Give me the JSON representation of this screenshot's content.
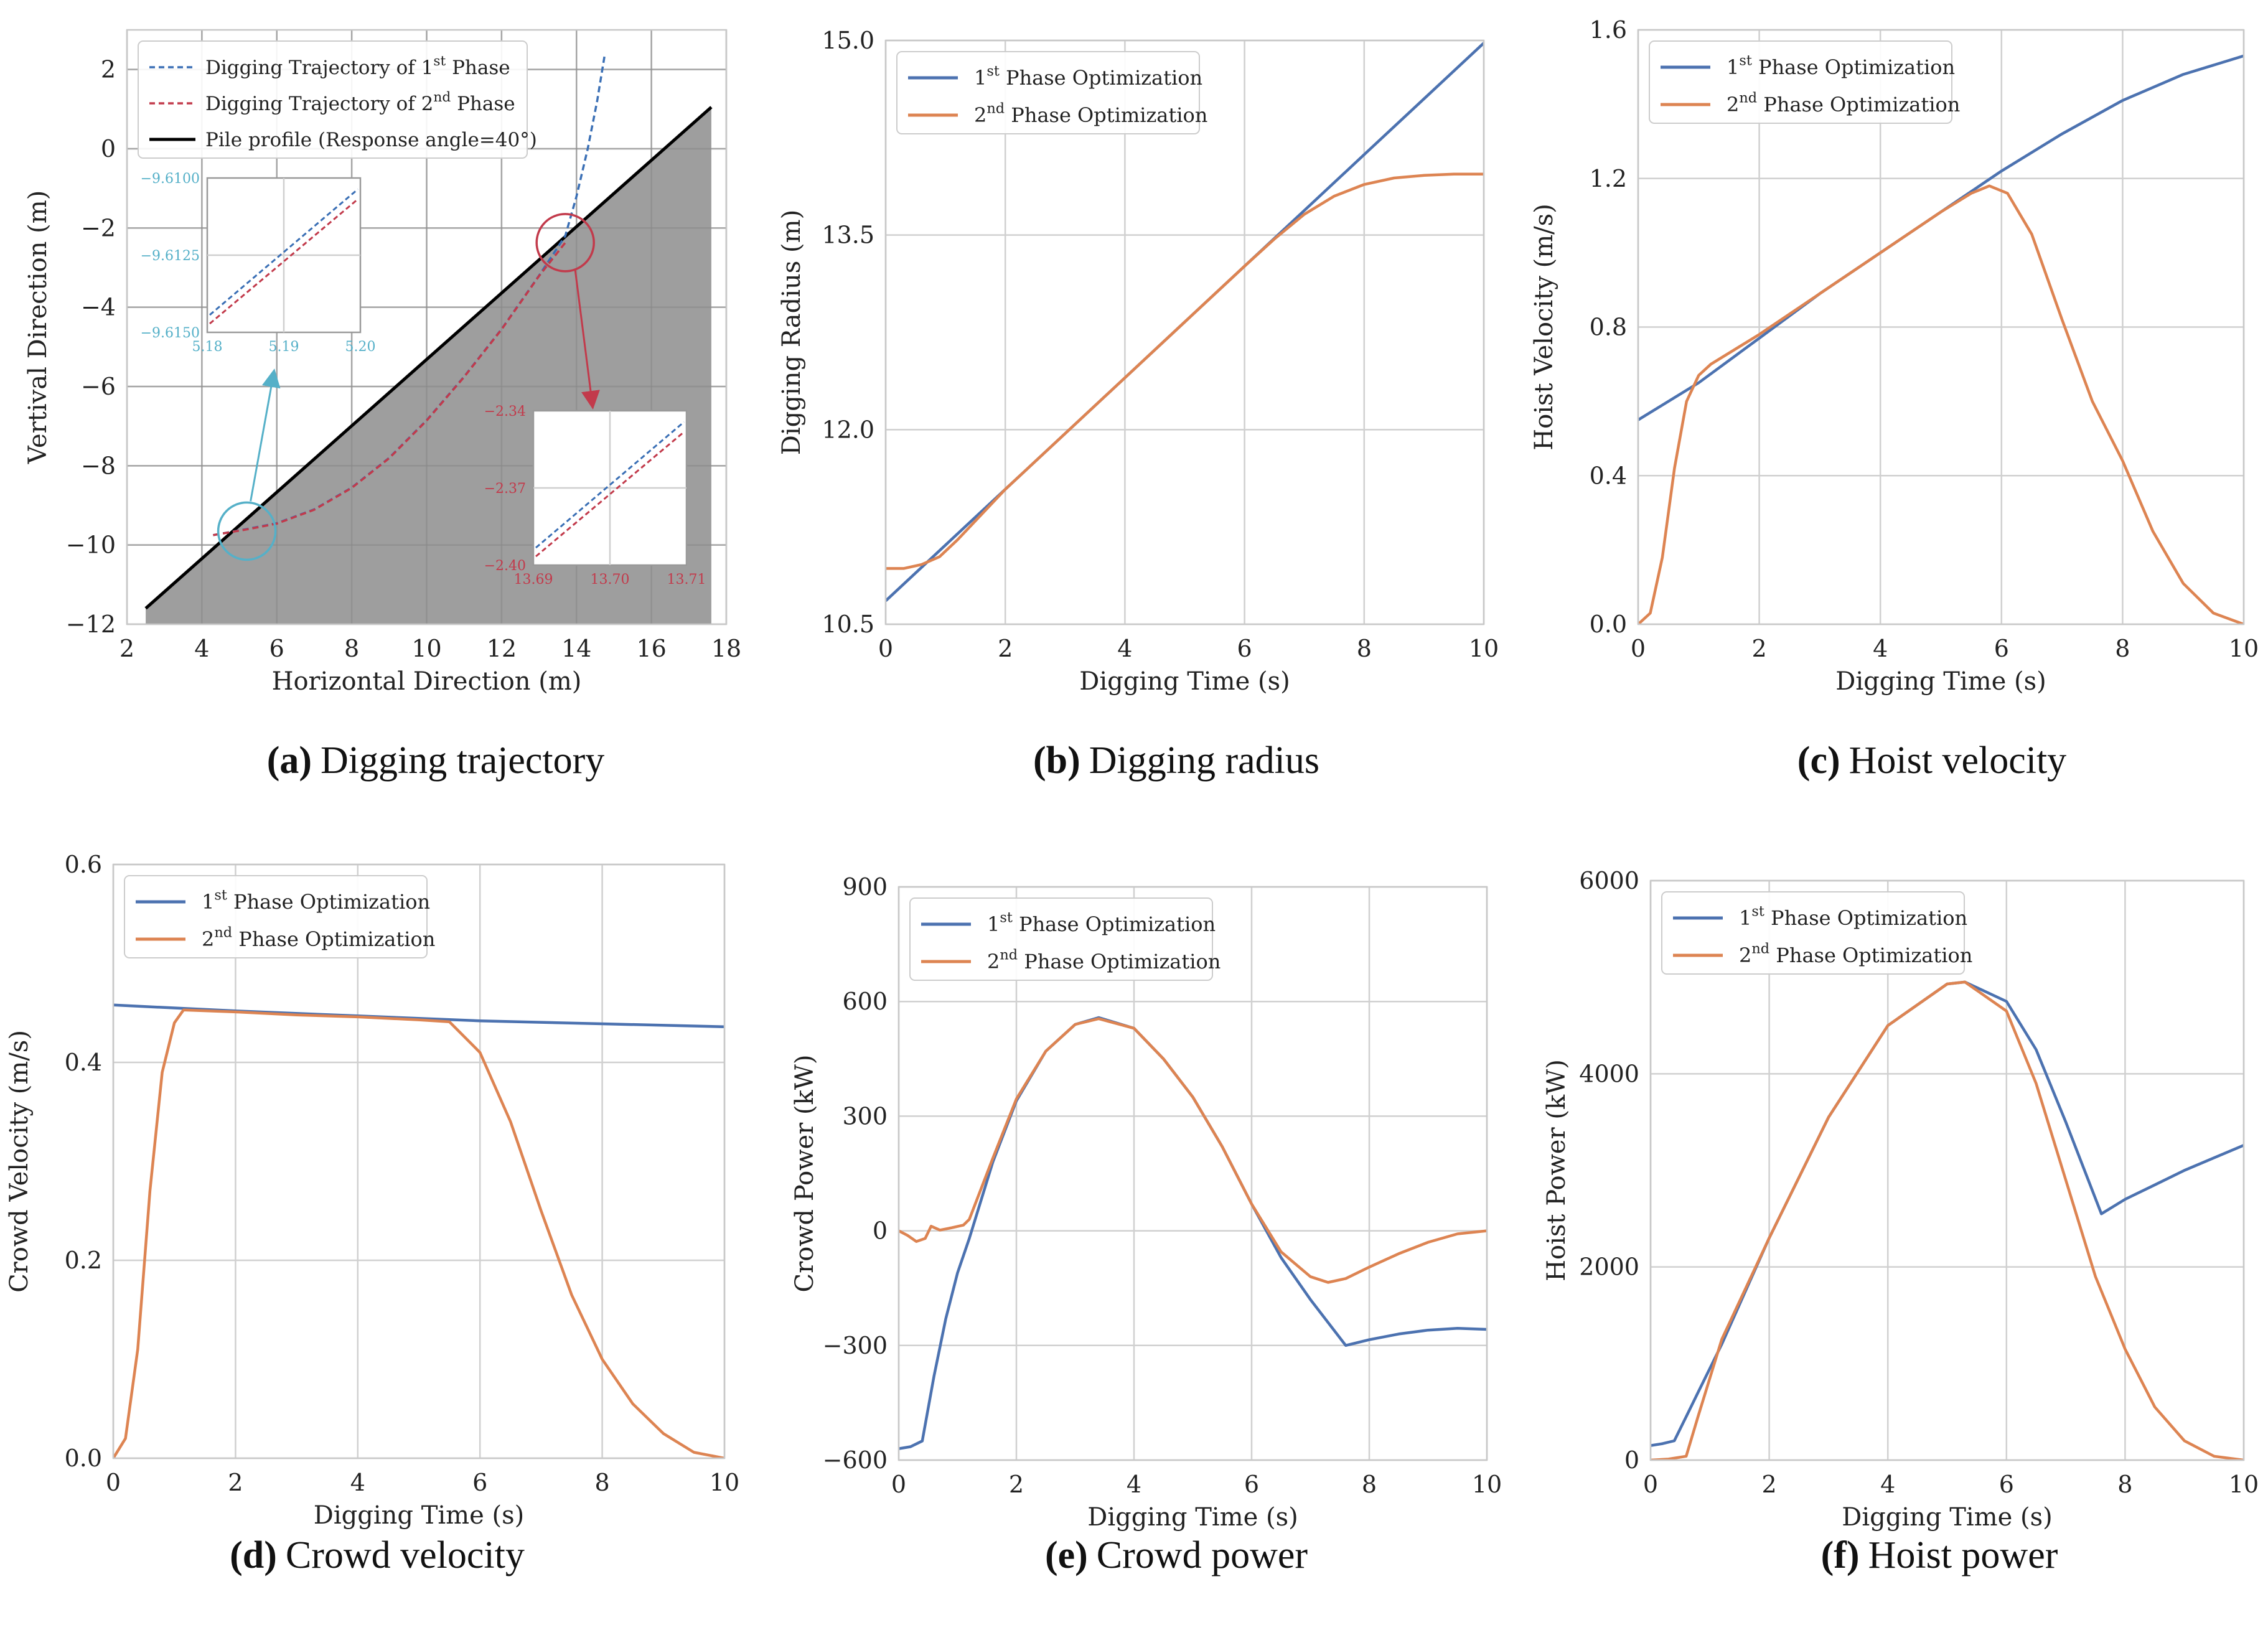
{
  "colors": {
    "blue": "#4c72b0",
    "orange": "#dd8452",
    "traj_blue": "#3a6fb5",
    "traj_red": "#c23a4b",
    "cyan": "#55b0c8",
    "pile_fill": "#999999",
    "grid": "#d0d0d0"
  },
  "chart_data": [
    {
      "id": "a",
      "type": "line",
      "caption_letter": "(a)",
      "caption_text": "Digging trajectory",
      "xlabel": "Horizontal Direction (m)",
      "ylabel": "Vertival Direction (m)",
      "xlim": [
        2,
        18
      ],
      "ylim": [
        -12,
        3
      ],
      "xticks": [
        2,
        4,
        6,
        8,
        10,
        12,
        14,
        16,
        18
      ],
      "yticks": [
        -12,
        -10,
        -8,
        -6,
        -4,
        -2,
        0,
        2
      ],
      "legend": [
        {
          "label": "Digging Trajectory of 1st  Phase",
          "style": "dashed",
          "color": "traj_blue"
        },
        {
          "label": "Digging Trajectory of 2nd Phase",
          "style": "dashed",
          "color": "traj_red"
        },
        {
          "label": "Pile profile (Response angle=40°)",
          "style": "solid",
          "color": "black"
        }
      ],
      "pile_profile": {
        "x": [
          2.5,
          17.6
        ],
        "y": [
          -11.6,
          1.05
        ]
      },
      "series": [
        {
          "name": "Digging Trajectory of 1st Phase",
          "color": "traj_blue",
          "x": [
            4.3,
            5.18,
            6,
            7,
            8,
            9,
            10,
            11,
            12,
            13,
            13.7,
            14.0,
            14.3,
            14.55,
            14.75
          ],
          "y": [
            -9.75,
            -9.6,
            -9.45,
            -9.1,
            -8.55,
            -7.8,
            -6.85,
            -5.75,
            -4.55,
            -3.2,
            -2.2,
            -1.2,
            0.0,
            1.2,
            2.35
          ]
        },
        {
          "name": "Digging Trajectory of 2nd Phase",
          "color": "traj_red",
          "x": [
            4.3,
            5.18,
            6,
            7,
            8,
            9,
            10,
            11,
            12,
            13,
            13.7
          ],
          "y": [
            -9.75,
            -9.61,
            -9.46,
            -9.11,
            -8.56,
            -7.81,
            -6.86,
            -5.76,
            -4.56,
            -3.21,
            -2.37
          ]
        }
      ],
      "annotations": {
        "circle_cyan": {
          "x": 5.2,
          "y": -9.65
        },
        "circle_red": {
          "x": 13.7,
          "y": -2.37
        },
        "inset_left": {
          "xticks": [
            "5.18",
            "5.19",
            "5.20"
          ],
          "yticks": [
            "−9.6100",
            "−9.6125",
            "−9.6150"
          ]
        },
        "inset_right": {
          "xticks": [
            "13.69",
            "13.70",
            "13.71"
          ],
          "yticks": [
            "−2.34",
            "−2.37",
            "−2.40"
          ]
        }
      }
    },
    {
      "id": "b",
      "type": "line",
      "caption_letter": "(b)",
      "caption_text": "Digging radius",
      "xlabel": "Digging Time (s)",
      "ylabel": "Digging Radius (m)",
      "xlim": [
        0,
        10
      ],
      "ylim": [
        10.5,
        15.0
      ],
      "xticks": [
        0,
        2,
        4,
        6,
        8,
        10
      ],
      "yticks": [
        10.5,
        12.0,
        13.5,
        15.0
      ],
      "ytick_labels": [
        "10.5",
        "12.0",
        "13.5",
        "15.0"
      ],
      "legend": [
        "1st  Phase Optimization",
        "2nd Phase Optimization"
      ],
      "series": [
        {
          "name": "1st Phase Optimization",
          "color": "blue",
          "x": [
            0,
            1,
            2,
            3,
            4,
            5,
            6,
            7,
            8,
            9,
            10
          ],
          "y": [
            10.68,
            11.11,
            11.54,
            11.97,
            12.4,
            12.83,
            13.26,
            13.69,
            14.12,
            14.55,
            14.98
          ]
        },
        {
          "name": "2nd Phase Optimization",
          "color": "orange",
          "x": [
            0,
            0.3,
            0.6,
            0.9,
            1.2,
            2,
            3,
            4,
            5,
            6,
            6.5,
            7,
            7.5,
            8,
            8.5,
            9,
            9.5,
            10
          ],
          "y": [
            10.93,
            10.93,
            10.96,
            11.02,
            11.15,
            11.54,
            11.97,
            12.4,
            12.83,
            13.26,
            13.47,
            13.66,
            13.8,
            13.89,
            13.94,
            13.96,
            13.97,
            13.97
          ]
        }
      ]
    },
    {
      "id": "c",
      "type": "line",
      "caption_letter": "(c)",
      "caption_text": "Hoist velocity",
      "xlabel": "Digging Time (s)",
      "ylabel": "Hoist Velocity (m/s)",
      "xlim": [
        0,
        10
      ],
      "ylim": [
        0,
        1.6
      ],
      "xticks": [
        0,
        2,
        4,
        6,
        8,
        10
      ],
      "yticks": [
        0,
        0.4,
        0.8,
        1.2,
        1.6
      ],
      "ytick_labels": [
        "0.0",
        "0.4",
        "0.8",
        "1.2",
        "1.6"
      ],
      "legend": [
        "1st  Phase Optimization",
        "2nd Phase Optimization"
      ],
      "series": [
        {
          "name": "1st Phase Optimization",
          "color": "blue",
          "x": [
            0,
            1,
            2,
            3,
            4,
            5,
            6,
            7,
            8,
            9,
            10
          ],
          "y": [
            0.55,
            0.65,
            0.77,
            0.89,
            1.0,
            1.11,
            1.22,
            1.32,
            1.41,
            1.48,
            1.53
          ]
        },
        {
          "name": "2nd Phase Optimization",
          "color": "orange",
          "x": [
            0,
            0.2,
            0.4,
            0.6,
            0.8,
            1.0,
            1.2,
            2,
            3,
            4,
            5,
            5.5,
            5.8,
            6.1,
            6.5,
            7,
            7.5,
            8,
            8.5,
            9,
            9.5,
            10
          ],
          "y": [
            0,
            0.03,
            0.18,
            0.42,
            0.6,
            0.67,
            0.7,
            0.78,
            0.89,
            1.0,
            1.11,
            1.16,
            1.18,
            1.16,
            1.05,
            0.82,
            0.6,
            0.44,
            0.25,
            0.11,
            0.03,
            0
          ]
        }
      ]
    },
    {
      "id": "d",
      "type": "line",
      "caption_letter": "(d)",
      "caption_text": "Crowd velocity",
      "xlabel": "Digging Time (s)",
      "ylabel": "Crowd Velocity (m/s)",
      "xlim": [
        0,
        10
      ],
      "ylim": [
        0,
        0.6
      ],
      "xticks": [
        0,
        2,
        4,
        6,
        8,
        10
      ],
      "yticks": [
        0,
        0.2,
        0.4,
        0.6
      ],
      "ytick_labels": [
        "0.0",
        "0.2",
        "0.4",
        "0.6"
      ],
      "legend": [
        "1st  Phase Optimization",
        "2nd Phase Optimization"
      ],
      "series": [
        {
          "name": "1st Phase Optimization",
          "color": "blue",
          "x": [
            0,
            2,
            4,
            6,
            8,
            10
          ],
          "y": [
            0.458,
            0.452,
            0.447,
            0.442,
            0.439,
            0.436
          ]
        },
        {
          "name": "2nd Phase Optimization",
          "color": "orange",
          "x": [
            0,
            0.2,
            0.4,
            0.6,
            0.8,
            1.0,
            1.15,
            2,
            3,
            4,
            5,
            5.5,
            6,
            6.5,
            7,
            7.5,
            8,
            8.5,
            9,
            9.5,
            10
          ],
          "y": [
            0,
            0.02,
            0.11,
            0.27,
            0.39,
            0.44,
            0.453,
            0.451,
            0.448,
            0.446,
            0.443,
            0.441,
            0.41,
            0.34,
            0.25,
            0.165,
            0.1,
            0.055,
            0.025,
            0.006,
            0
          ]
        }
      ]
    },
    {
      "id": "e",
      "type": "line",
      "caption_letter": "(e)",
      "caption_text": "Crowd power",
      "xlabel": "Digging Time (s)",
      "ylabel": "Crowd Power (kW)",
      "xlim": [
        0,
        10
      ],
      "ylim": [
        -600,
        900
      ],
      "xticks": [
        0,
        2,
        4,
        6,
        8,
        10
      ],
      "yticks": [
        -600,
        -300,
        0,
        300,
        600,
        900
      ],
      "ytick_labels": [
        "−600",
        "−300",
        "0",
        "300",
        "600",
        "900"
      ],
      "legend": [
        "1st  Phase Optimization",
        "2nd Phase Optimization"
      ],
      "series": [
        {
          "name": "1st Phase Optimization",
          "color": "blue",
          "x": [
            0,
            0.2,
            0.4,
            0.6,
            0.8,
            1.0,
            1.2,
            1.6,
            2,
            2.5,
            3,
            3.4,
            4,
            4.5,
            5,
            5.5,
            6,
            6.5,
            7,
            7.6,
            8,
            8.5,
            9,
            9.5,
            10
          ],
          "y": [
            -570,
            -565,
            -550,
            -380,
            -230,
            -110,
            -20,
            180,
            340,
            470,
            540,
            558,
            530,
            450,
            350,
            220,
            70,
            -70,
            -180,
            -300,
            -285,
            -270,
            -260,
            -255,
            -258
          ]
        },
        {
          "name": "2nd Phase Optimization",
          "color": "orange",
          "x": [
            0,
            0.15,
            0.3,
            0.45,
            0.55,
            0.7,
            0.9,
            1.1,
            1.2,
            1.6,
            2,
            2.5,
            3,
            3.4,
            4,
            4.5,
            5,
            5.5,
            6,
            6.5,
            7,
            7.3,
            7.6,
            8,
            8.5,
            9,
            9.5,
            10
          ],
          "y": [
            0,
            -12,
            -28,
            -20,
            12,
            2,
            8,
            15,
            30,
            190,
            345,
            470,
            540,
            555,
            530,
            450,
            350,
            220,
            70,
            -55,
            -120,
            -135,
            -125,
            -95,
            -60,
            -30,
            -8,
            0
          ]
        }
      ]
    },
    {
      "id": "f",
      "type": "line",
      "caption_letter": "(f)",
      "caption_text": "Hoist power",
      "xlabel": "Digging Time (s)",
      "ylabel": "Hoist Power (kW)",
      "xlim": [
        0,
        10
      ],
      "ylim": [
        0,
        6000
      ],
      "xticks": [
        0,
        2,
        4,
        6,
        8,
        10
      ],
      "yticks": [
        0,
        2000,
        4000,
        6000
      ],
      "ytick_labels": [
        "0",
        "2000",
        "4000",
        "6000"
      ],
      "legend": [
        "1st  Phase Optimization",
        "2nd Phase Optimization"
      ],
      "series": [
        {
          "name": "1st Phase Optimization",
          "color": "blue",
          "x": [
            0,
            0.2,
            0.4,
            0.6,
            0.8,
            1.0,
            1.2,
            2,
            3,
            4,
            5,
            5.3,
            6,
            6.5,
            7,
            7.6,
            8,
            8.5,
            9,
            9.5,
            10
          ],
          "y": [
            150,
            170,
            200,
            450,
            700,
            950,
            1200,
            2300,
            3550,
            4500,
            4930,
            4950,
            4750,
            4250,
            3500,
            2550,
            2700,
            2850,
            3000,
            3130,
            3260
          ]
        },
        {
          "name": "2nd Phase Optimization",
          "color": "orange",
          "x": [
            0,
            0.3,
            0.6,
            0.8,
            1.0,
            1.2,
            2,
            3,
            4,
            5,
            5.3,
            6,
            6.5,
            7,
            7.5,
            8,
            8.5,
            9,
            9.5,
            10
          ],
          "y": [
            0,
            10,
            40,
            450,
            850,
            1250,
            2300,
            3550,
            4500,
            4930,
            4950,
            4650,
            3900,
            2900,
            1900,
            1150,
            550,
            200,
            40,
            0
          ]
        }
      ]
    }
  ]
}
